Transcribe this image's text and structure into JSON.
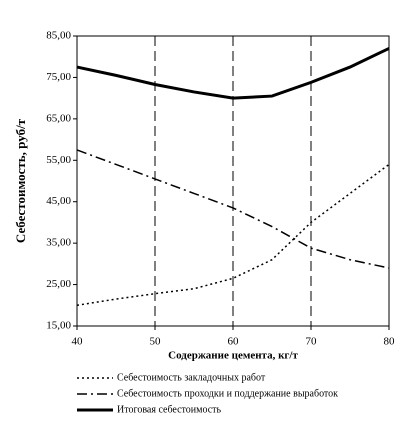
{
  "chart_data": {
    "type": "line",
    "x_label": "Содержание цемента, кг/т",
    "y_label": "Себестоимость, руб/т",
    "x": [
      40,
      45,
      50,
      55,
      60,
      65,
      70,
      75,
      80
    ],
    "series": [
      {
        "name": "Себестоимость закладочных работ",
        "color": "#000000",
        "style": "dotted",
        "values": [
          20,
          21.5,
          22.8,
          24,
          26.5,
          31,
          40,
          47,
          54
        ]
      },
      {
        "name": "Себестоимость проходки и поддержание выработок",
        "color": "#000000",
        "style": "dashdot",
        "values": [
          57.5,
          54,
          50.5,
          47,
          43.5,
          39,
          33.8,
          31,
          29
        ]
      },
      {
        "name": "Итоговая себестоимость",
        "color": "#000000",
        "style": "solid",
        "values": [
          77.5,
          75.5,
          73.3,
          71.5,
          70,
          70.5,
          73.8,
          77.5,
          82
        ]
      }
    ],
    "xlim": [
      40,
      80
    ],
    "xticks": [
      40,
      50,
      60,
      70,
      80
    ],
    "ylim": [
      15,
      85
    ],
    "yticks": [
      {
        "value": 15,
        "label": "15,00"
      },
      {
        "value": 25,
        "label": "25,00"
      },
      {
        "value": 35,
        "label": "35,00"
      },
      {
        "value": 45,
        "label": "45,00"
      },
      {
        "value": 55,
        "label": "55,00"
      },
      {
        "value": 65,
        "label": "65,00"
      },
      {
        "value": 75,
        "label": "75,00"
      },
      {
        "value": 85,
        "label": "85,00"
      }
    ],
    "grid": "x",
    "legend": "bottom"
  }
}
